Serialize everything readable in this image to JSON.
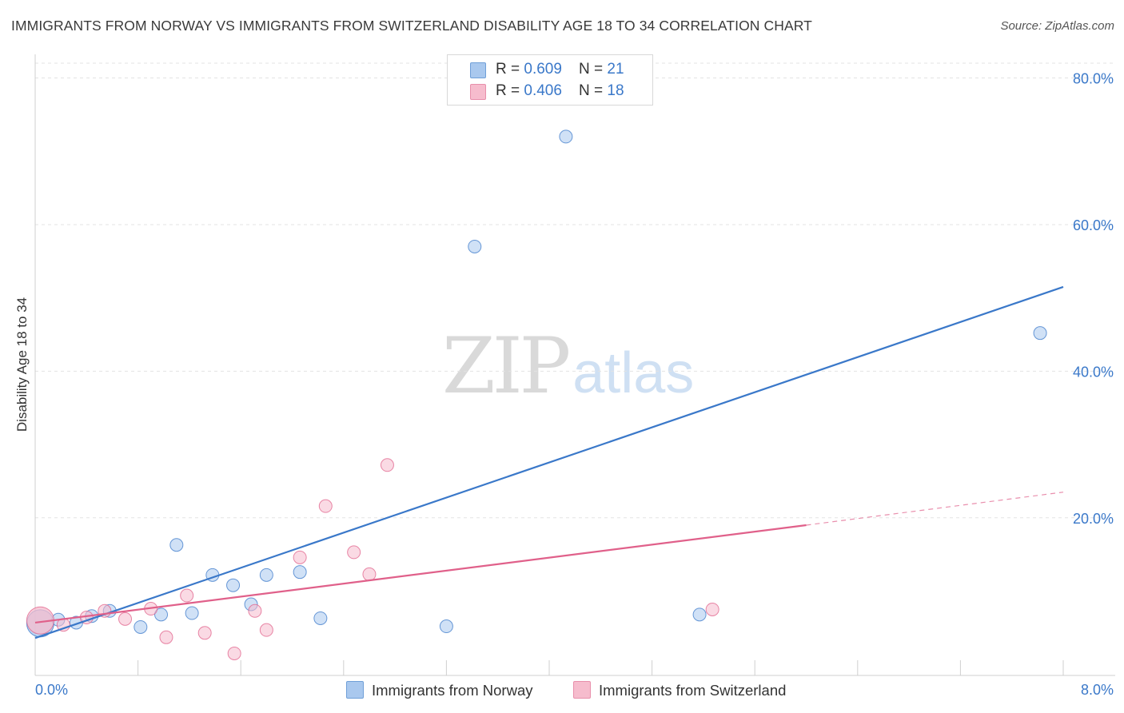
{
  "title": "IMMIGRANTS FROM NORWAY VS IMMIGRANTS FROM SWITZERLAND DISABILITY AGE 18 TO 34 CORRELATION CHART",
  "source": "Source: ZipAtlas.com",
  "watermark": {
    "zip": "ZIP",
    "atlas": "atlas"
  },
  "legend_top": [
    {
      "r_label": "R = ",
      "r_value": "0.609",
      "n_label": "N = ",
      "n_value": "21"
    },
    {
      "r_label": "R = ",
      "r_value": "0.406",
      "n_label": "N = ",
      "n_value": "18"
    }
  ],
  "chart_data": {
    "type": "scatter",
    "title": "IMMIGRANTS FROM NORWAY VS IMMIGRANTS FROM SWITZERLAND DISABILITY AGE 18 TO 34 CORRELATION CHART",
    "xlabel": "",
    "ylabel": "Disability Age 18 to 34",
    "xlim": [
      0,
      8
    ],
    "ylim": [
      -1.5,
      83
    ],
    "x_tick_labels": [
      "0.0%",
      "8.0%"
    ],
    "y_ticks": [
      20,
      40,
      60,
      80
    ],
    "y_tick_labels": [
      "20.0%",
      "40.0%",
      "60.0%",
      "80.0%"
    ],
    "grid": true,
    "legend_position": "bottom",
    "series": [
      {
        "name": "Immigrants from Norway",
        "color": "#3a78c9",
        "fill": "#a9c8ee",
        "r": "0.609",
        "n": "21",
        "points": [
          {
            "x": 0.04,
            "y": 5.6,
            "big": true
          },
          {
            "x": 0.18,
            "y": 6.1
          },
          {
            "x": 0.32,
            "y": 5.7
          },
          {
            "x": 0.44,
            "y": 6.6
          },
          {
            "x": 0.58,
            "y": 7.3
          },
          {
            "x": 0.82,
            "y": 5.1
          },
          {
            "x": 0.98,
            "y": 6.8
          },
          {
            "x": 1.1,
            "y": 16.3
          },
          {
            "x": 1.22,
            "y": 7.0
          },
          {
            "x": 1.38,
            "y": 12.2
          },
          {
            "x": 1.54,
            "y": 10.8
          },
          {
            "x": 1.68,
            "y": 8.2
          },
          {
            "x": 1.8,
            "y": 12.2
          },
          {
            "x": 2.06,
            "y": 12.6
          },
          {
            "x": 2.22,
            "y": 6.3
          },
          {
            "x": 3.2,
            "y": 5.2
          },
          {
            "x": 3.42,
            "y": 57.0
          },
          {
            "x": 4.13,
            "y": 72.0
          },
          {
            "x": 5.17,
            "y": 6.8
          },
          {
            "x": 7.82,
            "y": 45.2
          }
        ],
        "trend": {
          "x0": 0,
          "y0": 3.6,
          "x1": 8.0,
          "y1": 51.5
        }
      },
      {
        "name": "Immigrants from Switzerland",
        "color": "#e0608a",
        "fill": "#f6bccd",
        "r": "0.406",
        "n": "18",
        "points": [
          {
            "x": 0.04,
            "y": 6.0,
            "big": true
          },
          {
            "x": 0.22,
            "y": 5.4
          },
          {
            "x": 0.4,
            "y": 6.4
          },
          {
            "x": 0.54,
            "y": 7.3
          },
          {
            "x": 0.7,
            "y": 6.2
          },
          {
            "x": 0.9,
            "y": 7.6
          },
          {
            "x": 1.02,
            "y": 3.7
          },
          {
            "x": 1.18,
            "y": 9.4
          },
          {
            "x": 1.32,
            "y": 4.3
          },
          {
            "x": 1.55,
            "y": 1.5
          },
          {
            "x": 1.71,
            "y": 7.3
          },
          {
            "x": 1.8,
            "y": 4.7
          },
          {
            "x": 2.06,
            "y": 14.6
          },
          {
            "x": 2.26,
            "y": 21.6
          },
          {
            "x": 2.48,
            "y": 15.3
          },
          {
            "x": 2.6,
            "y": 12.3
          },
          {
            "x": 2.74,
            "y": 27.2
          },
          {
            "x": 5.27,
            "y": 7.5
          }
        ],
        "trend": {
          "x0": 0,
          "y0": 5.7,
          "x1": 6.0,
          "y1": 19.0
        },
        "trend_extension": {
          "x0": 6.0,
          "y0": 19.0,
          "x1": 8.0,
          "y1": 23.5
        }
      }
    ]
  }
}
